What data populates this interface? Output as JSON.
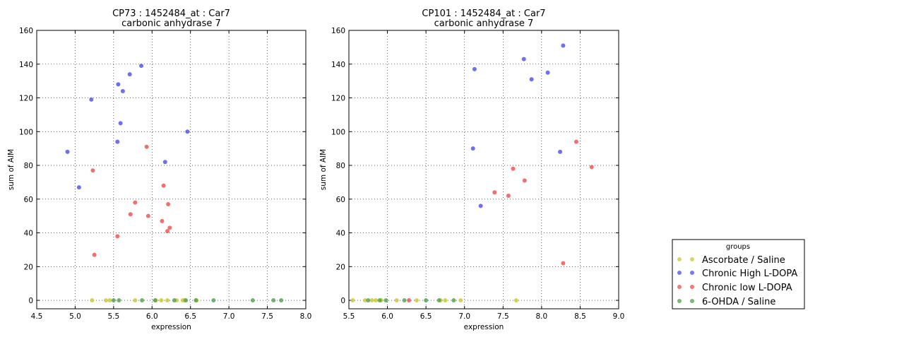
{
  "chart_data": [
    {
      "type": "scatter",
      "title": "CP73 : 1452484_at : Car7",
      "subtitle": "carbonic anhydrase 7",
      "xlabel": "expression",
      "ylabel": "sum of AIM",
      "xlim": [
        4.5,
        8.0
      ],
      "ylim": [
        -5,
        160
      ],
      "xticks": [
        "4.5",
        "5.0",
        "5.5",
        "6.0",
        "6.5",
        "7.0",
        "7.5",
        "8.0"
      ],
      "yticks": [
        "0",
        "20",
        "40",
        "60",
        "80",
        "100",
        "120",
        "140",
        "160"
      ],
      "grid": true,
      "series": [
        {
          "name": "Ascorbate / Saline",
          "color": "#c8c832",
          "points": [
            [
              5.22,
              0
            ],
            [
              5.4,
              0
            ],
            [
              5.45,
              0
            ],
            [
              5.78,
              0
            ],
            [
              6.05,
              0
            ],
            [
              6.12,
              0
            ],
            [
              6.2,
              0
            ],
            [
              6.32,
              0
            ],
            [
              6.4,
              0
            ],
            [
              6.42,
              0
            ],
            [
              6.58,
              0
            ]
          ]
        },
        {
          "name": "Chronic High L-DOPA",
          "color": "#4b4bf0",
          "points": [
            [
              4.9,
              88
            ],
            [
              5.05,
              67
            ],
            [
              5.21,
              119
            ],
            [
              5.55,
              94
            ],
            [
              5.56,
              128
            ],
            [
              5.59,
              105
            ],
            [
              5.62,
              124
            ],
            [
              5.71,
              134
            ],
            [
              5.86,
              139
            ],
            [
              6.17,
              82
            ],
            [
              6.46,
              100
            ]
          ]
        },
        {
          "name": "Chronic low L-DOPA",
          "color": "#f04b4b",
          "points": [
            [
              5.23,
              77
            ],
            [
              5.25,
              27
            ],
            [
              5.55,
              38
            ],
            [
              5.72,
              51
            ],
            [
              5.78,
              58
            ],
            [
              5.93,
              91
            ],
            [
              5.95,
              50
            ],
            [
              6.13,
              47
            ],
            [
              6.15,
              68
            ],
            [
              6.2,
              41
            ],
            [
              6.21,
              57
            ],
            [
              6.23,
              43
            ]
          ]
        },
        {
          "name": "6-OHDA / Saline",
          "color": "#4ba04b",
          "points": [
            [
              5.5,
              0
            ],
            [
              5.57,
              0
            ],
            [
              5.87,
              0
            ],
            [
              6.04,
              0
            ],
            [
              6.29,
              0
            ],
            [
              6.44,
              0
            ],
            [
              6.57,
              0
            ],
            [
              6.8,
              0
            ],
            [
              7.31,
              0
            ],
            [
              7.58,
              0
            ],
            [
              7.68,
              0
            ]
          ]
        }
      ]
    },
    {
      "type": "scatter",
      "title": "CP101 : 1452484_at : Car7",
      "subtitle": "carbonic anhydrase 7",
      "xlabel": "expression",
      "ylabel": "sum of AIM",
      "xlim": [
        5.5,
        9.0
      ],
      "ylim": [
        -5,
        160
      ],
      "xticks": [
        "5.5",
        "6.0",
        "6.5",
        "7.0",
        "7.5",
        "8.0",
        "8.5",
        "9.0"
      ],
      "yticks": [
        "0",
        "20",
        "40",
        "60",
        "80",
        "100",
        "120",
        "140",
        "160"
      ],
      "grid": true,
      "series": [
        {
          "name": "Ascorbate / Saline",
          "color": "#c8c832",
          "points": [
            [
              5.55,
              0
            ],
            [
              5.71,
              0
            ],
            [
              5.8,
              0
            ],
            [
              5.85,
              0
            ],
            [
              5.92,
              0
            ],
            [
              6.12,
              0
            ],
            [
              6.38,
              0
            ],
            [
              6.69,
              0
            ],
            [
              6.75,
              0
            ],
            [
              6.95,
              0
            ],
            [
              7.67,
              0
            ]
          ]
        },
        {
          "name": "Chronic High L-DOPA",
          "color": "#4b4bf0",
          "points": [
            [
              7.11,
              90
            ],
            [
              7.13,
              137
            ],
            [
              7.21,
              56
            ],
            [
              7.77,
              143
            ],
            [
              7.87,
              131
            ],
            [
              8.08,
              135
            ],
            [
              8.24,
              88
            ],
            [
              8.28,
              151
            ]
          ]
        },
        {
          "name": "Chronic low L-DOPA",
          "color": "#f04b4b",
          "points": [
            [
              6.28,
              0
            ],
            [
              7.39,
              64
            ],
            [
              7.57,
              62
            ],
            [
              7.63,
              78
            ],
            [
              7.78,
              71
            ],
            [
              8.28,
              22
            ],
            [
              8.45,
              94
            ],
            [
              8.65,
              79
            ]
          ]
        },
        {
          "name": "6-OHDA / Saline",
          "color": "#4ba04b",
          "points": [
            [
              5.75,
              0
            ],
            [
              5.9,
              0
            ],
            [
              5.98,
              0
            ],
            [
              6.22,
              0
            ],
            [
              6.5,
              0
            ],
            [
              6.67,
              0
            ],
            [
              6.86,
              0
            ]
          ]
        }
      ]
    }
  ],
  "legend": {
    "title": "groups",
    "placement": "bottom-right",
    "entries": [
      {
        "label": "Ascorbate / Saline",
        "color": "#c8c832"
      },
      {
        "label": "Chronic High L-DOPA",
        "color": "#4b4bf0"
      },
      {
        "label": "Chronic low L-DOPA",
        "color": "#f04b4b"
      },
      {
        "label": "6-OHDA / Saline",
        "color": "#4ba04b"
      }
    ]
  }
}
